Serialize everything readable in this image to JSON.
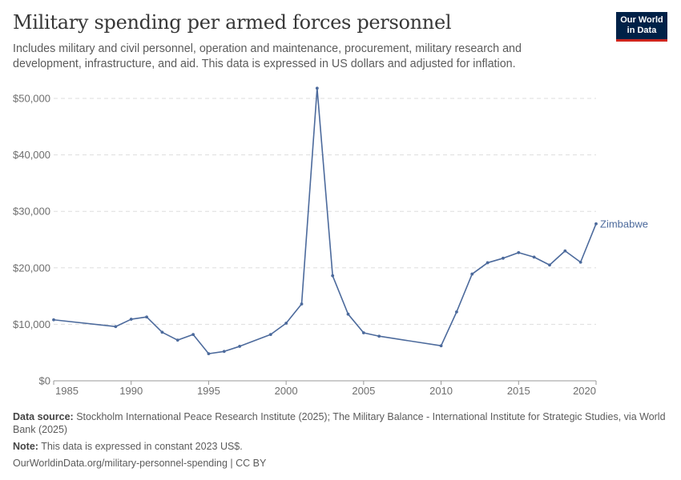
{
  "header": {
    "title": "Military spending per armed forces personnel",
    "subtitle": "Includes military and civil personnel, operation and maintenance, procurement, military research and development, infrastructure, and aid. This data is expressed in US dollars and adjusted for inflation.",
    "logo": "Our World in Data"
  },
  "chart_data": {
    "type": "line",
    "title": "Military spending per armed forces personnel",
    "xlabel": "",
    "ylabel": "",
    "xlim": [
      1985,
      2020
    ],
    "ylim": [
      0,
      50000
    ],
    "x_ticks": [
      "1985",
      "1990",
      "1995",
      "2000",
      "2005",
      "2010",
      "2015",
      "2020"
    ],
    "y_ticks": [
      "$0",
      "$10,000",
      "$20,000",
      "$30,000",
      "$40,000",
      "$50,000"
    ],
    "grid": "horizontal dashed",
    "series": [
      {
        "name": "Zimbabwe",
        "color": "#4c6a9c",
        "x": [
          1985,
          1989,
          1990,
          1991,
          1992,
          1993,
          1994,
          1995,
          1996,
          1997,
          1999,
          2000,
          2001,
          2002,
          2003,
          2004,
          2005,
          2006,
          2010,
          2011,
          2012,
          2013,
          2014,
          2015,
          2016,
          2017,
          2018,
          2019,
          2020
        ],
        "y": [
          10800,
          9600,
          10900,
          11300,
          8600,
          7200,
          8200,
          4800,
          5200,
          6100,
          8200,
          10200,
          13600,
          51800,
          18600,
          11800,
          8500,
          7900,
          6200,
          12200,
          18900,
          20900,
          21700,
          22700,
          21900,
          20500,
          23000,
          21000,
          27800
        ]
      }
    ]
  },
  "footer": {
    "source_label": "Data source:",
    "source": "Stockholm International Peace Research Institute (2025); The Military Balance - International Institute for Strategic Studies, via World Bank (2025)",
    "note_label": "Note:",
    "note": "This data is expressed in constant 2023 US$.",
    "url": "OurWorldinData.org/military-personnel-spending | CC BY"
  }
}
